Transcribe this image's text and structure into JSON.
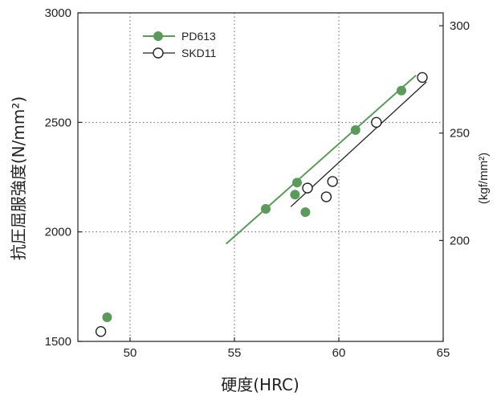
{
  "chart_data": {
    "type": "scatter",
    "xlabel": "硬度(HRC)",
    "ylabel": "抗圧屈服強度(N/mm²)",
    "y2label": "(kgf/mm²)",
    "xlim": [
      47.5,
      65
    ],
    "ylim": [
      1500,
      3000
    ],
    "y2lim": [
      153,
      306
    ],
    "x_ticks": [
      "50",
      "55",
      "60",
      "65"
    ],
    "y_ticks": [
      "1500",
      "2000",
      "2500",
      "3000"
    ],
    "y2_ticks": [
      "200",
      "250",
      "300"
    ],
    "grid": "dotted",
    "legend": "top-left",
    "colors": {
      "PD613": "#5b9a5b",
      "SKD11": "#222222"
    },
    "series": [
      {
        "name": "PD613",
        "marker": "filled-circle",
        "points": [
          [
            48.9,
            1610
          ],
          [
            56.5,
            2105
          ],
          [
            57.9,
            2170
          ],
          [
            58.0,
            2225
          ],
          [
            58.4,
            2090
          ],
          [
            60.8,
            2465
          ],
          [
            63.0,
            2645
          ]
        ],
        "trendline": [
          [
            54.6,
            1945
          ],
          [
            63.7,
            2715
          ]
        ]
      },
      {
        "name": "SKD11",
        "marker": "open-circle",
        "points": [
          [
            48.6,
            1545
          ],
          [
            58.5,
            2200
          ],
          [
            59.4,
            2160
          ],
          [
            59.7,
            2230
          ],
          [
            61.8,
            2500
          ],
          [
            64.0,
            2705
          ]
        ],
        "trendline": [
          [
            57.7,
            2115
          ],
          [
            64.2,
            2685
          ]
        ]
      }
    ]
  }
}
